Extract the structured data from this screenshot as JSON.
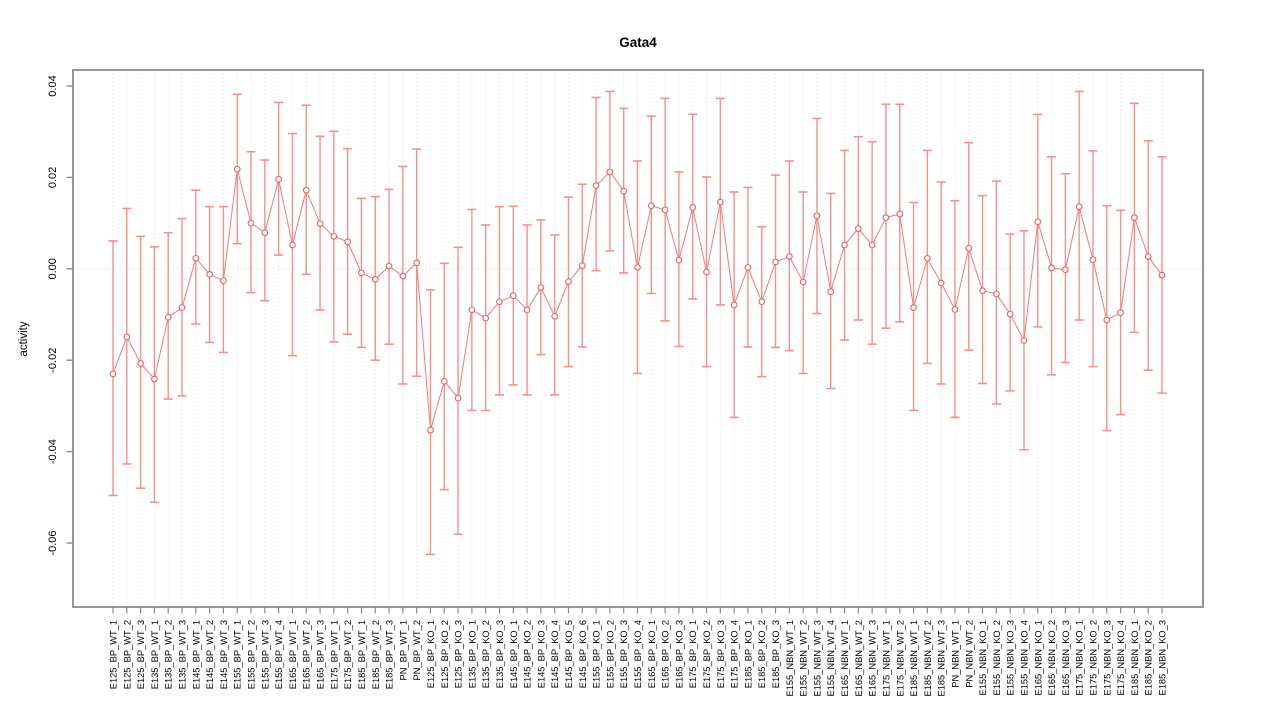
{
  "colors": {
    "point_stroke": "#f25f5f",
    "series_line": "#f47a7a",
    "error_bar": "#f59090",
    "frame": "#8a8a8a",
    "grid": "#dedede",
    "zero_line": "#d9d9d9",
    "label_text": "#000000"
  },
  "chart_data": {
    "type": "scatter",
    "title": "Gata4",
    "xlabel": "",
    "ylabel": "activity",
    "legend_position": "none",
    "grid": "vertical dotted gridline per category; horizontal dotted line at y=0",
    "ylim": [
      -0.074,
      0.0435
    ],
    "yticks": [
      0.04,
      0.02,
      0.0,
      -0.02,
      -0.04,
      -0.06
    ],
    "error_bars": "vertical with end caps (confidence interval low/high per point)",
    "points": [
      {
        "label": "E125_BP_WT_1",
        "value": -0.023,
        "ci_low": -0.0496,
        "ci_high": 0.0061
      },
      {
        "label": "E125_BP_WT_2",
        "value": -0.0149,
        "ci_low": -0.0427,
        "ci_high": 0.0132
      },
      {
        "label": "E125_BP_WT_3",
        "value": -0.0207,
        "ci_low": -0.048,
        "ci_high": 0.0071
      },
      {
        "label": "E135_BP_WT_1",
        "value": -0.0241,
        "ci_low": -0.0511,
        "ci_high": 0.0048
      },
      {
        "label": "E135_BP_WT_2",
        "value": -0.0106,
        "ci_low": -0.0285,
        "ci_high": 0.0079
      },
      {
        "label": "E135_BP_WT_3",
        "value": -0.0085,
        "ci_low": -0.0278,
        "ci_high": 0.011
      },
      {
        "label": "E145_BP_WT_1",
        "value": 0.0023,
        "ci_low": -0.0121,
        "ci_high": 0.0172
      },
      {
        "label": "E145_BP_WT_2",
        "value": -0.0012,
        "ci_low": -0.0161,
        "ci_high": 0.0136
      },
      {
        "label": "E145_BP_WT_3",
        "value": -0.0026,
        "ci_low": -0.0183,
        "ci_high": 0.0136
      },
      {
        "label": "E155_BP_WT_1",
        "value": 0.0218,
        "ci_low": 0.0055,
        "ci_high": 0.0382
      },
      {
        "label": "E155_BP_WT_2",
        "value": 0.01,
        "ci_low": -0.0052,
        "ci_high": 0.0256
      },
      {
        "label": "E155_BP_WT_3",
        "value": 0.0079,
        "ci_low": -0.007,
        "ci_high": 0.0238
      },
      {
        "label": "E155_BP_WT_4",
        "value": 0.0196,
        "ci_low": 0.003,
        "ci_high": 0.0364
      },
      {
        "label": "E165_BP_WT_1",
        "value": 0.0052,
        "ci_low": -0.019,
        "ci_high": 0.0296
      },
      {
        "label": "E165_BP_WT_2",
        "value": 0.0172,
        "ci_low": -0.0012,
        "ci_high": 0.0358
      },
      {
        "label": "E165_BP_WT_3",
        "value": 0.0099,
        "ci_low": -0.009,
        "ci_high": 0.029
      },
      {
        "label": "E175_BP_WT_1",
        "value": 0.0071,
        "ci_low": -0.016,
        "ci_high": 0.0301
      },
      {
        "label": "E175_BP_WT_2",
        "value": 0.0059,
        "ci_low": -0.0143,
        "ci_high": 0.0263
      },
      {
        "label": "E185_BP_WT_1",
        "value": -0.0009,
        "ci_low": -0.0172,
        "ci_high": 0.0154
      },
      {
        "label": "E185_BP_WT_2",
        "value": -0.0023,
        "ci_low": -0.02,
        "ci_high": 0.0158
      },
      {
        "label": "E185_BP_WT_3",
        "value": 0.0006,
        "ci_low": -0.0165,
        "ci_high": 0.0174
      },
      {
        "label": "PN_BP_WT_1",
        "value": -0.0016,
        "ci_low": -0.0252,
        "ci_high": 0.0224
      },
      {
        "label": "PN_BP_WT_2",
        "value": 0.0013,
        "ci_low": -0.0235,
        "ci_high": 0.0262
      },
      {
        "label": "E125_BP_KO_1",
        "value": -0.0353,
        "ci_low": -0.0625,
        "ci_high": -0.0046
      },
      {
        "label": "E125_BP_KO_2",
        "value": -0.0246,
        "ci_low": -0.0483,
        "ci_high": 0.0012
      },
      {
        "label": "E125_BP_KO_3",
        "value": -0.0283,
        "ci_low": -0.0581,
        "ci_high": 0.0047
      },
      {
        "label": "E135_BP_KO_1",
        "value": -0.009,
        "ci_low": -0.031,
        "ci_high": 0.013
      },
      {
        "label": "E135_BP_KO_2",
        "value": -0.0108,
        "ci_low": -0.031,
        "ci_high": 0.0096
      },
      {
        "label": "E135_BP_KO_3",
        "value": -0.0072,
        "ci_low": -0.0276,
        "ci_high": 0.0136
      },
      {
        "label": "E145_BP_KO_1",
        "value": -0.0059,
        "ci_low": -0.0254,
        "ci_high": 0.0137
      },
      {
        "label": "E145_BP_KO_2",
        "value": -0.009,
        "ci_low": -0.0276,
        "ci_high": 0.0096
      },
      {
        "label": "E145_BP_KO_3",
        "value": -0.0041,
        "ci_low": -0.0188,
        "ci_high": 0.0107
      },
      {
        "label": "E145_BP_KO_4",
        "value": -0.0104,
        "ci_low": -0.0276,
        "ci_high": 0.0074
      },
      {
        "label": "E145_BP_KO_5",
        "value": -0.0028,
        "ci_low": -0.0214,
        "ci_high": 0.0157
      },
      {
        "label": "E145_BP_KO_6",
        "value": 0.0007,
        "ci_low": -0.0171,
        "ci_high": 0.0185
      },
      {
        "label": "E155_BP_KO_1",
        "value": 0.0182,
        "ci_low": -0.0004,
        "ci_high": 0.0375
      },
      {
        "label": "E155_BP_KO_2",
        "value": 0.0212,
        "ci_low": 0.0039,
        "ci_high": 0.0388
      },
      {
        "label": "E155_BP_KO_3",
        "value": 0.017,
        "ci_low": -0.0009,
        "ci_high": 0.0351
      },
      {
        "label": "E155_BP_KO_4",
        "value": 0.0003,
        "ci_low": -0.0229,
        "ci_high": 0.0236
      },
      {
        "label": "E165_BP_KO_1",
        "value": 0.0138,
        "ci_low": -0.0054,
        "ci_high": 0.0334
      },
      {
        "label": "E165_BP_KO_2",
        "value": 0.0129,
        "ci_low": -0.0114,
        "ci_high": 0.0373
      },
      {
        "label": "E165_BP_KO_3",
        "value": 0.0019,
        "ci_low": -0.017,
        "ci_high": 0.0212
      },
      {
        "label": "E175_BP_KO_1",
        "value": 0.0134,
        "ci_low": -0.0066,
        "ci_high": 0.0338
      },
      {
        "label": "E175_BP_KO_2",
        "value": -0.0007,
        "ci_low": -0.0214,
        "ci_high": 0.0201
      },
      {
        "label": "E175_BP_KO_3",
        "value": 0.0146,
        "ci_low": -0.0079,
        "ci_high": 0.0373
      },
      {
        "label": "E175_BP_KO_4",
        "value": -0.0079,
        "ci_low": -0.0325,
        "ci_high": 0.0168
      },
      {
        "label": "E185_BP_KO_1",
        "value": 0.0003,
        "ci_low": -0.0171,
        "ci_high": 0.0178
      },
      {
        "label": "E185_BP_KO_2",
        "value": -0.0072,
        "ci_low": -0.0236,
        "ci_high": 0.0092
      },
      {
        "label": "E185_BP_KO_3",
        "value": 0.0015,
        "ci_low": -0.0172,
        "ci_high": 0.0205
      },
      {
        "label": "E155_NBN_WT_1",
        "value": 0.0027,
        "ci_low": -0.0179,
        "ci_high": 0.0236
      },
      {
        "label": "E155_NBN_WT_2",
        "value": -0.0029,
        "ci_low": -0.0229,
        "ci_high": 0.0168
      },
      {
        "label": "E155_NBN_WT_3",
        "value": 0.0116,
        "ci_low": -0.0098,
        "ci_high": 0.0329
      },
      {
        "label": "E155_NBN_WT_4",
        "value": -0.005,
        "ci_low": -0.0262,
        "ci_high": 0.0165
      },
      {
        "label": "E165_NBN_WT_1",
        "value": 0.0052,
        "ci_low": -0.0156,
        "ci_high": 0.0259
      },
      {
        "label": "E165_NBN_WT_2",
        "value": 0.0088,
        "ci_low": -0.0112,
        "ci_high": 0.0289
      },
      {
        "label": "E165_NBN_WT_3",
        "value": 0.0052,
        "ci_low": -0.0165,
        "ci_high": 0.0278
      },
      {
        "label": "E175_NBN_WT_1",
        "value": 0.0112,
        "ci_low": -0.013,
        "ci_high": 0.036
      },
      {
        "label": "E175_NBN_WT_2",
        "value": 0.012,
        "ci_low": -0.0116,
        "ci_high": 0.036
      },
      {
        "label": "E185_NBN_WT_1",
        "value": -0.0085,
        "ci_low": -0.031,
        "ci_high": 0.0145
      },
      {
        "label": "E185_NBN_WT_2",
        "value": 0.0023,
        "ci_low": -0.0207,
        "ci_high": 0.0259
      },
      {
        "label": "E185_NBN_WT_3",
        "value": -0.0031,
        "ci_low": -0.0252,
        "ci_high": 0.019
      },
      {
        "label": "PN_NBN_WT_1",
        "value": -0.0089,
        "ci_low": -0.0325,
        "ci_high": 0.0149
      },
      {
        "label": "PN_NBN_WT_2",
        "value": 0.0045,
        "ci_low": -0.0178,
        "ci_high": 0.0276
      },
      {
        "label": "E155_NBN_KO_1",
        "value": -0.0048,
        "ci_low": -0.0251,
        "ci_high": 0.016
      },
      {
        "label": "E155_NBN_KO_2",
        "value": -0.0055,
        "ci_low": -0.0296,
        "ci_high": 0.0192
      },
      {
        "label": "E155_NBN_KO_3",
        "value": -0.0099,
        "ci_low": -0.0267,
        "ci_high": 0.0076
      },
      {
        "label": "E155_NBN_KO_4",
        "value": -0.0157,
        "ci_low": -0.0396,
        "ci_high": 0.0083
      },
      {
        "label": "E165_NBN_KO_1",
        "value": 0.0103,
        "ci_low": -0.0127,
        "ci_high": 0.0338
      },
      {
        "label": "E165_NBN_KO_2",
        "value": 0.0002,
        "ci_low": -0.0232,
        "ci_high": 0.0245
      },
      {
        "label": "E165_NBN_KO_3",
        "value": -0.0002,
        "ci_low": -0.0205,
        "ci_high": 0.0208
      },
      {
        "label": "E175_NBN_KO_1",
        "value": 0.0136,
        "ci_low": -0.0112,
        "ci_high": 0.0388
      },
      {
        "label": "E175_NBN_KO_2",
        "value": 0.002,
        "ci_low": -0.0214,
        "ci_high": 0.0258
      },
      {
        "label": "E175_NBN_KO_3",
        "value": -0.0112,
        "ci_low": -0.0354,
        "ci_high": 0.0138
      },
      {
        "label": "E175_NBN_KO_4",
        "value": -0.0096,
        "ci_low": -0.0319,
        "ci_high": 0.0128
      },
      {
        "label": "E185_NBN_KO_1",
        "value": 0.0112,
        "ci_low": -0.0139,
        "ci_high": 0.0362
      },
      {
        "label": "E185_NBN_KO_2",
        "value": 0.0027,
        "ci_low": -0.0222,
        "ci_high": 0.028
      },
      {
        "label": "E185_NBN_KO_3",
        "value": -0.0014,
        "ci_low": -0.0272,
        "ci_high": 0.0245
      }
    ]
  }
}
